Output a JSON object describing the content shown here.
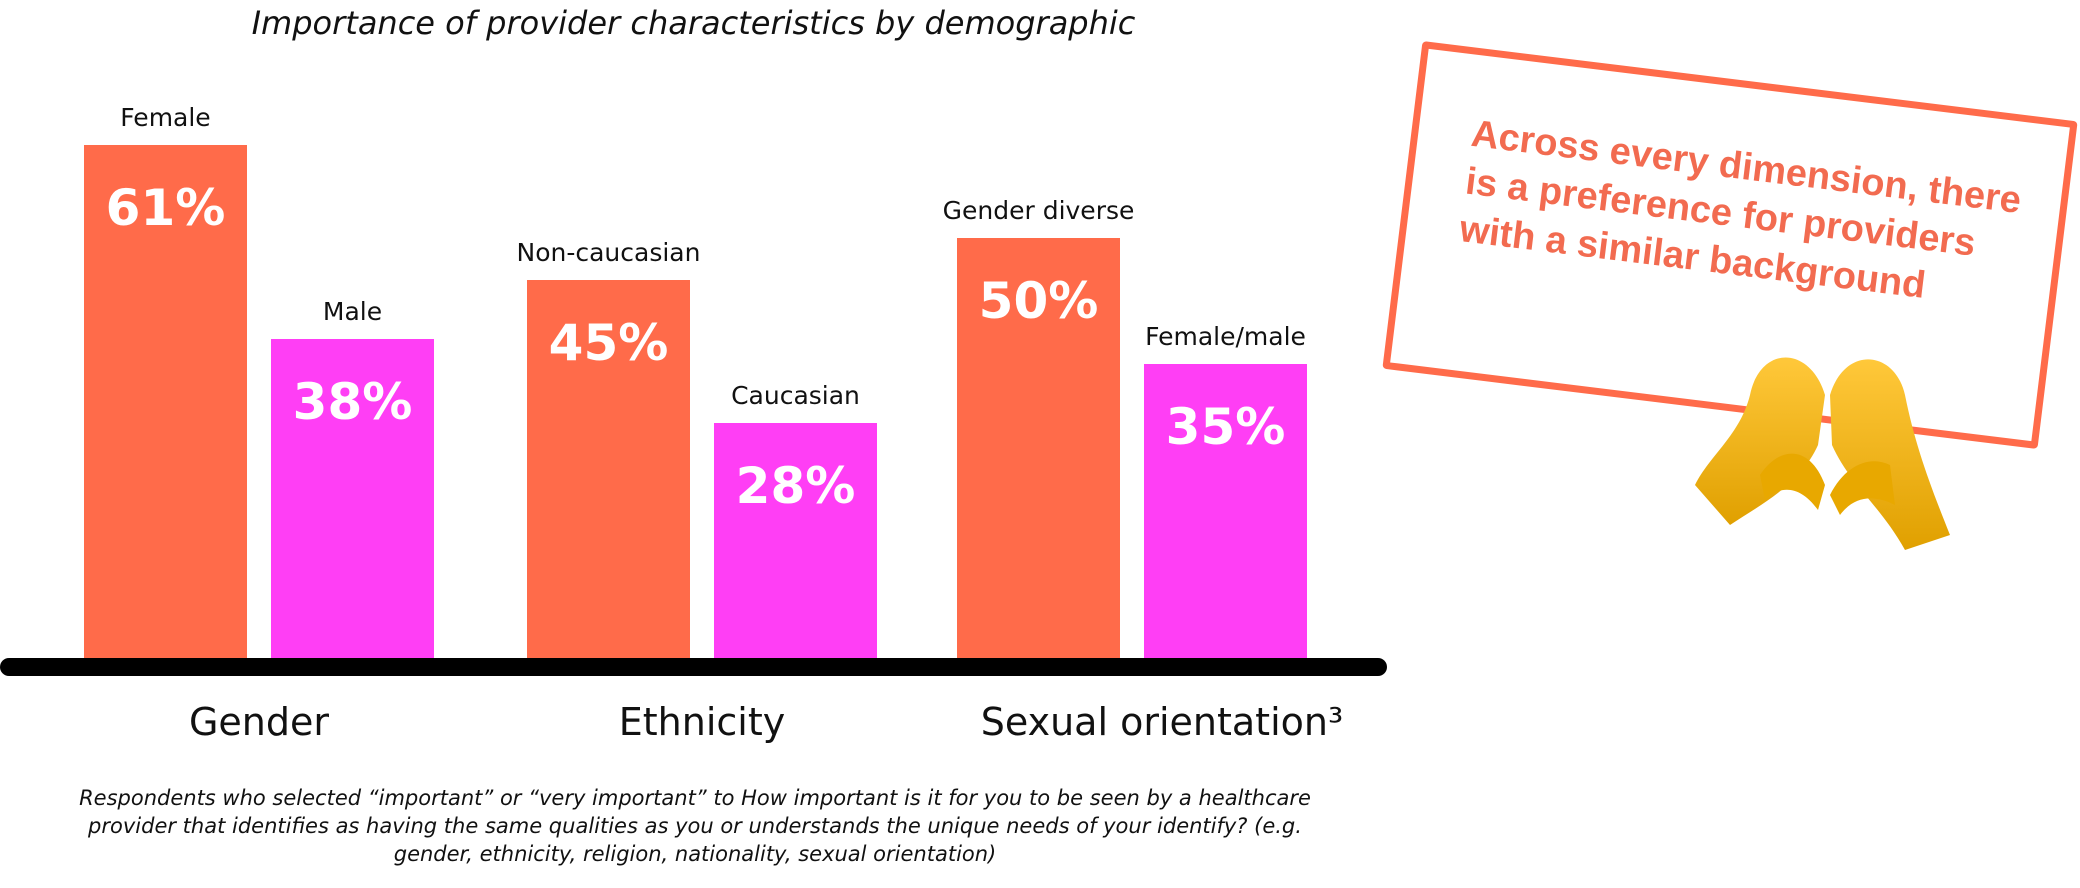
{
  "chart_data": {
    "type": "bar",
    "title": "Importance of provider characteristics by demographic",
    "groups": [
      {
        "label": "Gender",
        "bars": [
          {
            "category": "Female",
            "value": 61,
            "display": "61%"
          },
          {
            "category": "Male",
            "value": 38,
            "display": "38%"
          }
        ]
      },
      {
        "label": "Ethnicity",
        "bars": [
          {
            "category": "Non-caucasian",
            "value": 45,
            "display": "45%"
          },
          {
            "category": "Caucasian",
            "value": 28,
            "display": "28%"
          }
        ]
      },
      {
        "label": "Sexual orientation³",
        "bars": [
          {
            "category": "Gender diverse",
            "value": 50,
            "display": "50%"
          },
          {
            "category": "Female/male",
            "value": 35,
            "display": "35%"
          }
        ]
      }
    ],
    "colors": {
      "primary": "#FF6B4A",
      "secondary": "#FF3EF5"
    },
    "ylim": [
      0,
      100
    ],
    "grid": false,
    "xlabel": "",
    "ylabel": ""
  },
  "footnote": "Respondents who selected “important” or “very important” to How important is it for you to be seen by a healthcare provider that identifies as having the same qualities as you or understands the unique needs of your identify? (e.g. gender, ethnicity, religion, nationality, sexual orientation)",
  "callout": {
    "text": "Across every dimension, there is a preference for providers with a similar background",
    "icon": "heart-hands-icon",
    "color": "#F26B50"
  }
}
